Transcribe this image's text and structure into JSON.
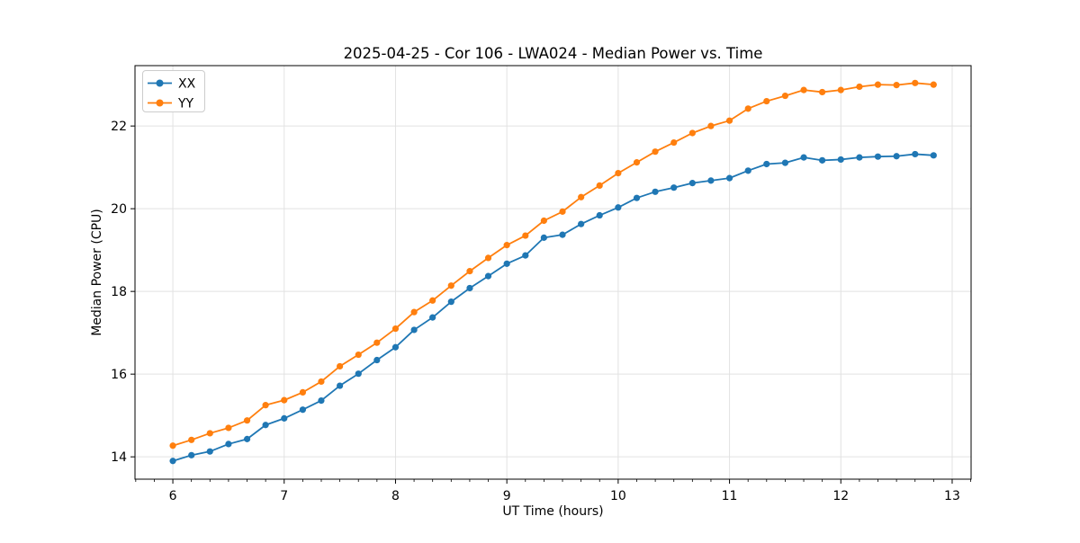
{
  "chart_data": {
    "type": "line",
    "title": "2025-04-25 - Cor 106 - LWA024 - Median Power vs. Time",
    "xlabel": "UT Time (hours)",
    "ylabel": "Median Power (CPU)",
    "xlim": [
      5.66,
      13.17
    ],
    "ylim": [
      13.46,
      23.46
    ],
    "x_major_ticks": [
      6,
      7,
      8,
      9,
      10,
      11,
      12,
      13
    ],
    "x_minor_divisions_per_hour": 6,
    "y_major_ticks": [
      14,
      16,
      18,
      20,
      22
    ],
    "grid": true,
    "grid_color": "#e2e2e2",
    "spine_color": "#000000",
    "legend_position": "upper left",
    "marker": "o",
    "x": [
      6.0,
      6.167,
      6.333,
      6.5,
      6.667,
      6.833,
      7.0,
      7.167,
      7.333,
      7.5,
      7.667,
      7.833,
      8.0,
      8.167,
      8.333,
      8.5,
      8.667,
      8.833,
      9.0,
      9.167,
      9.333,
      9.5,
      9.667,
      9.833,
      10.0,
      10.167,
      10.333,
      10.5,
      10.667,
      10.833,
      11.0,
      11.167,
      11.333,
      11.5,
      11.667,
      11.833,
      12.0,
      12.167,
      12.333,
      12.5,
      12.667,
      12.833
    ],
    "series": [
      {
        "name": "XX",
        "color": "#1f77b4",
        "values": [
          13.9,
          14.04,
          14.13,
          14.31,
          14.43,
          14.77,
          14.93,
          15.14,
          15.36,
          15.72,
          16.01,
          16.34,
          16.65,
          17.07,
          17.37,
          17.75,
          18.08,
          18.37,
          18.67,
          18.87,
          19.3,
          19.37,
          19.63,
          19.84,
          20.03,
          20.26,
          20.41,
          20.51,
          20.62,
          20.68,
          20.74,
          20.92,
          21.08,
          21.11,
          21.24,
          21.17,
          21.19,
          21.24,
          21.26,
          21.27,
          21.32,
          21.29
        ]
      },
      {
        "name": "YY",
        "color": "#ff7f0e",
        "values": [
          14.27,
          14.41,
          14.57,
          14.7,
          14.88,
          15.25,
          15.37,
          15.56,
          15.82,
          16.19,
          16.47,
          16.76,
          17.1,
          17.5,
          17.78,
          18.14,
          18.49,
          18.81,
          19.12,
          19.35,
          19.71,
          19.93,
          20.28,
          20.56,
          20.86,
          21.12,
          21.38,
          21.6,
          21.83,
          22.0,
          22.13,
          22.42,
          22.6,
          22.73,
          22.87,
          22.82,
          22.87,
          22.95,
          23.0,
          22.99,
          23.04,
          23.0
        ]
      }
    ]
  }
}
